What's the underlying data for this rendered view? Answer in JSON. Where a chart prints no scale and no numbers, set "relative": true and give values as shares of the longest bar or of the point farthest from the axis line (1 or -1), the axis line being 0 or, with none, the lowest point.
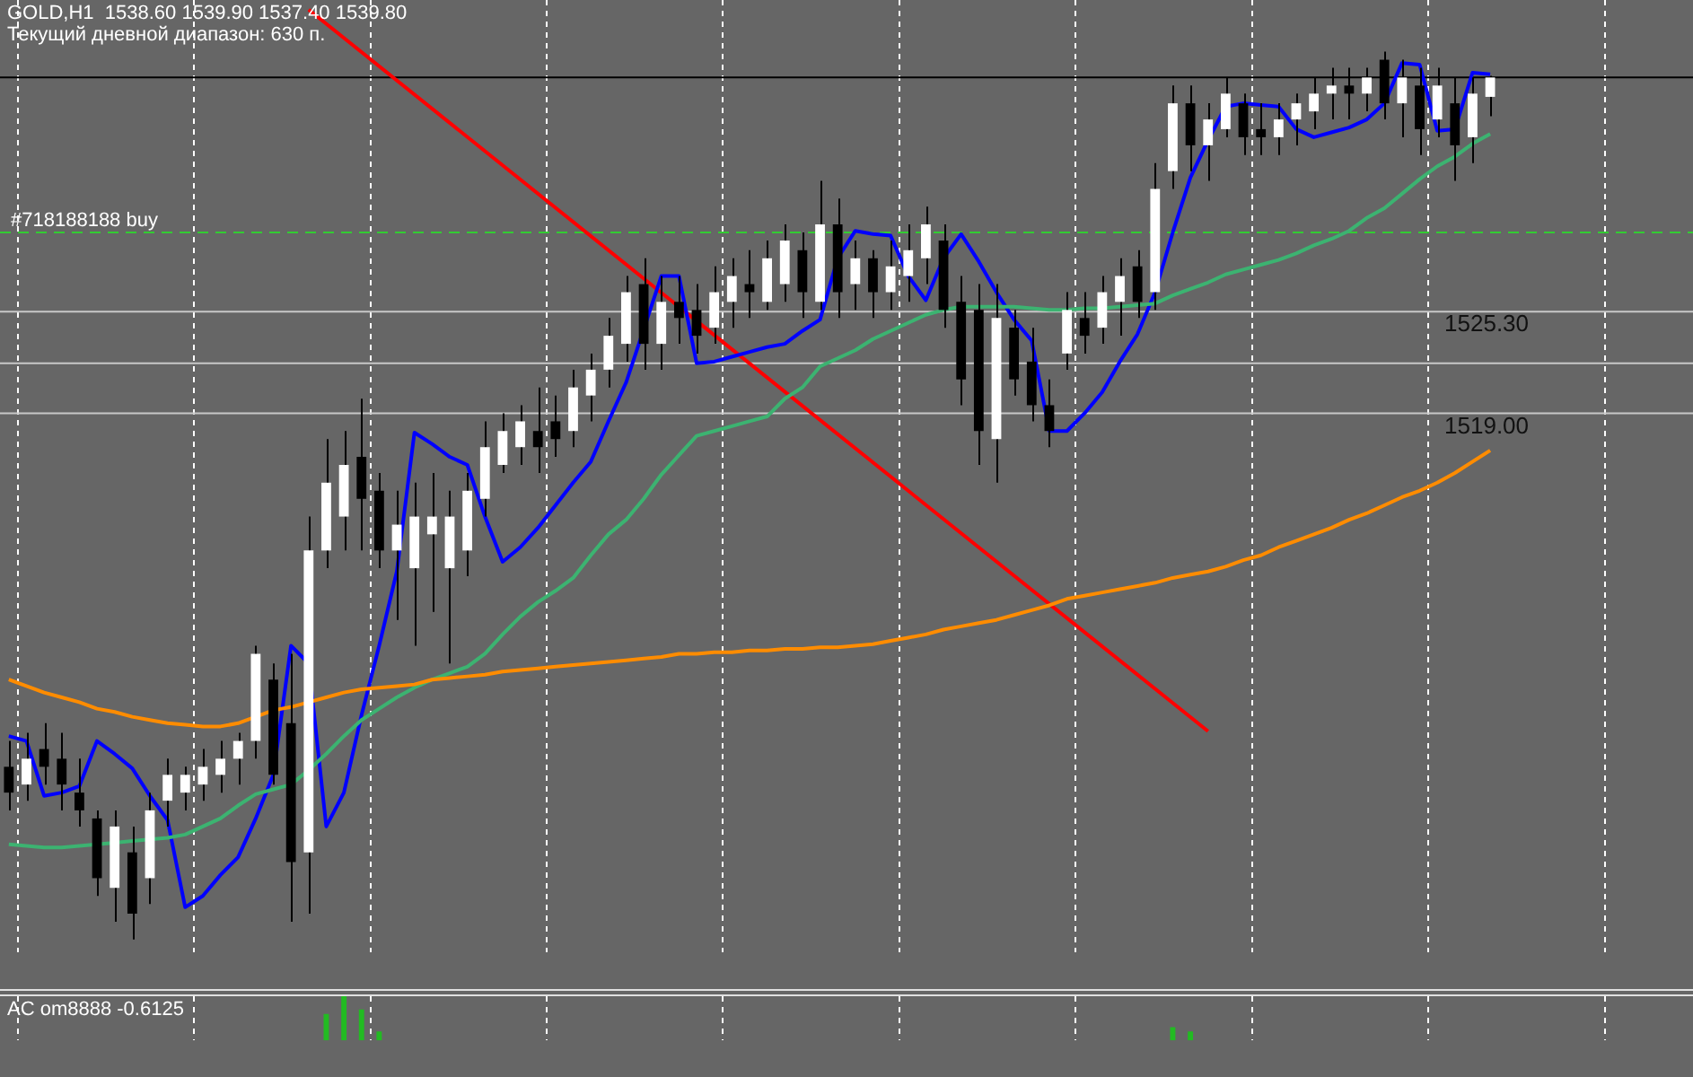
{
  "chart_data": [
    {
      "type": "candlestick",
      "title": "GOLD,H1  1538.60 1539.90 1537.40 1539.80",
      "subtitle": "Текущий дневной диапазон: 630 п.",
      "categories": [
        null,
        null,
        null,
        null,
        null,
        null,
        null,
        null,
        null,
        null,
        null,
        null,
        null,
        null,
        null,
        null,
        null,
        null,
        null,
        null,
        null,
        null,
        null,
        null,
        null,
        null,
        null,
        null,
        null,
        null,
        null,
        null,
        null,
        null,
        null,
        null,
        null,
        null,
        null,
        null,
        null,
        null,
        null,
        null,
        null,
        null,
        null,
        null,
        null,
        null,
        null,
        null,
        null,
        null,
        null,
        null,
        null,
        null,
        null,
        null,
        null,
        null,
        null,
        null,
        null,
        null,
        null,
        null,
        null,
        null,
        null,
        null,
        null,
        null,
        null,
        null,
        null,
        null,
        null,
        null,
        null,
        null,
        null,
        null,
        null,
        null,
        null,
        null,
        null,
        null,
        null,
        null,
        null,
        null,
        null,
        null
      ],
      "ohlc": [
        [
          1497.1,
          1498.7,
          1494.4,
          1495.5
        ],
        [
          1496.0,
          1499.2,
          1495.0,
          1497.6
        ],
        [
          1498.2,
          1499.8,
          1496.0,
          1497.1
        ],
        [
          1497.6,
          1499.2,
          1494.4,
          1496.0
        ],
        [
          1495.5,
          1497.6,
          1493.4,
          1494.4
        ],
        [
          1493.9,
          1494.4,
          1489.1,
          1490.2
        ],
        [
          1489.6,
          1494.4,
          1487.5,
          1493.4
        ],
        [
          1491.8,
          1493.4,
          1486.4,
          1488.0
        ],
        [
          1490.2,
          1495.5,
          1488.6,
          1494.4
        ],
        [
          1495.0,
          1497.6,
          1493.4,
          1496.6
        ],
        [
          1495.5,
          1497.1,
          1494.4,
          1496.6
        ],
        [
          1496.0,
          1498.2,
          1495.0,
          1497.1
        ],
        [
          1496.6,
          1498.7,
          1495.5,
          1497.6
        ],
        [
          1497.6,
          1499.2,
          1496.0,
          1498.7
        ],
        [
          1498.7,
          1504.6,
          1497.6,
          1504.1
        ],
        [
          1502.5,
          1503.5,
          1496.0,
          1496.6
        ],
        [
          1499.8,
          1504.1,
          1487.5,
          1491.2
        ],
        [
          1491.8,
          1512.6,
          1488.0,
          1510.5
        ],
        [
          1510.5,
          1517.4,
          1509.4,
          1514.7
        ],
        [
          1512.6,
          1517.9,
          1510.5,
          1515.8
        ],
        [
          1516.3,
          1519.9,
          1510.5,
          1513.7
        ],
        [
          1514.2,
          1515.3,
          1509.4,
          1510.5
        ],
        [
          1510.5,
          1514.2,
          1506.2,
          1512.1
        ],
        [
          1509.4,
          1514.7,
          1504.6,
          1512.6
        ],
        [
          1511.5,
          1515.3,
          1506.7,
          1512.6
        ],
        [
          1509.4,
          1514.2,
          1503.5,
          1512.6
        ],
        [
          1510.5,
          1515.3,
          1508.9,
          1514.2
        ],
        [
          1513.7,
          1518.5,
          1512.6,
          1516.9
        ],
        [
          1515.8,
          1519.0,
          1515.3,
          1517.9
        ],
        [
          1516.9,
          1519.5,
          1515.8,
          1518.5
        ],
        [
          1517.9,
          1520.6,
          1515.3,
          1516.9
        ],
        [
          1518.5,
          1520.1,
          1516.3,
          1517.4
        ],
        [
          1517.9,
          1521.7,
          1516.9,
          1520.6
        ],
        [
          1520.1,
          1522.7,
          1518.5,
          1521.7
        ],
        [
          1521.7,
          1524.9,
          1520.6,
          1523.8
        ],
        [
          1523.3,
          1527.5,
          1522.2,
          1526.5
        ],
        [
          1527.0,
          1528.6,
          1521.7,
          1523.3
        ],
        [
          1523.3,
          1527.5,
          1521.7,
          1525.9
        ],
        [
          1525.9,
          1527.5,
          1523.3,
          1524.9
        ],
        [
          1525.4,
          1527.0,
          1522.7,
          1523.8
        ],
        [
          1524.3,
          1528.1,
          1523.3,
          1526.5
        ],
        [
          1525.9,
          1528.6,
          1524.3,
          1527.5
        ],
        [
          1527.0,
          1529.1,
          1524.9,
          1526.5
        ],
        [
          1525.9,
          1529.7,
          1525.4,
          1528.6
        ],
        [
          1527.0,
          1530.7,
          1525.9,
          1529.7
        ],
        [
          1529.1,
          1530.2,
          1524.9,
          1526.5
        ],
        [
          1525.9,
          1533.4,
          1525.4,
          1530.7
        ],
        [
          1530.7,
          1532.3,
          1524.9,
          1526.5
        ],
        [
          1527.0,
          1529.7,
          1525.4,
          1528.6
        ],
        [
          1528.6,
          1529.1,
          1524.9,
          1526.5
        ],
        [
          1526.5,
          1529.7,
          1525.4,
          1528.1
        ],
        [
          1527.5,
          1530.7,
          1525.9,
          1529.1
        ],
        [
          1528.6,
          1531.8,
          1527.0,
          1530.7
        ],
        [
          1529.7,
          1530.7,
          1524.3,
          1525.4
        ],
        [
          1525.9,
          1527.5,
          1519.5,
          1521.1
        ],
        [
          1525.4,
          1527.0,
          1515.8,
          1517.9
        ],
        [
          1517.4,
          1527.0,
          1514.7,
          1524.9
        ],
        [
          1524.3,
          1525.4,
          1520.1,
          1521.1
        ],
        [
          1522.2,
          1524.3,
          1518.5,
          1519.5
        ],
        [
          1519.5,
          1521.1,
          1516.9,
          1517.9
        ],
        [
          1522.7,
          1526.5,
          1521.7,
          1525.4
        ],
        [
          1524.9,
          1526.5,
          1522.7,
          1523.8
        ],
        [
          1524.3,
          1527.5,
          1523.3,
          1526.5
        ],
        [
          1525.9,
          1528.6,
          1523.8,
          1527.5
        ],
        [
          1528.1,
          1529.1,
          1524.9,
          1525.9
        ],
        [
          1526.5,
          1534.5,
          1525.4,
          1532.9
        ],
        [
          1534.0,
          1539.3,
          1532.9,
          1538.2
        ],
        [
          1538.2,
          1539.3,
          1534.0,
          1535.6
        ],
        [
          1535.6,
          1538.2,
          1533.4,
          1537.2
        ],
        [
          1536.6,
          1539.8,
          1536.1,
          1538.8
        ],
        [
          1538.2,
          1538.8,
          1535.0,
          1536.1
        ],
        [
          1536.6,
          1538.2,
          1535.0,
          1536.1
        ],
        [
          1536.1,
          1538.2,
          1535.0,
          1537.2
        ],
        [
          1537.2,
          1538.8,
          1535.6,
          1538.2
        ],
        [
          1537.7,
          1539.8,
          1536.6,
          1538.8
        ],
        [
          1538.8,
          1540.4,
          1537.2,
          1539.3
        ],
        [
          1539.3,
          1540.4,
          1537.2,
          1538.8
        ],
        [
          1538.8,
          1540.4,
          1537.7,
          1539.8
        ],
        [
          1540.9,
          1541.4,
          1537.2,
          1538.2
        ],
        [
          1538.2,
          1540.9,
          1536.1,
          1539.8
        ],
        [
          1539.3,
          1540.4,
          1535.0,
          1536.6
        ],
        [
          1537.2,
          1540.4,
          1536.1,
          1539.3
        ],
        [
          1538.2,
          1539.8,
          1533.4,
          1535.6
        ],
        [
          1536.1,
          1539.8,
          1534.5,
          1538.8
        ],
        [
          1538.6,
          1539.9,
          1537.4,
          1539.8
        ],
        null,
        null,
        null,
        null,
        null,
        null,
        null,
        null,
        null,
        null,
        null
      ],
      "series": [
        {
          "type": "line",
          "color": "#ff8c00",
          "values": [
            1502.5,
            1502.1,
            1501.7,
            1501.4,
            1501.1,
            1500.7,
            1500.5,
            1500.2,
            1500.0,
            1499.8,
            1499.7,
            1499.6,
            1499.6,
            1499.8,
            1500.2,
            1500.6,
            1500.8,
            1501.1,
            1501.4,
            1501.7,
            1501.9,
            1502.0,
            1502.1,
            1502.2,
            1502.5,
            1502.6,
            1502.7,
            1502.8,
            1503.0,
            1503.1,
            1503.2,
            1503.3,
            1503.4,
            1503.5,
            1503.6,
            1503.7,
            1503.8,
            1503.9,
            1504.1,
            1504.1,
            1504.2,
            1504.2,
            1504.3,
            1504.3,
            1504.4,
            1504.4,
            1504.5,
            1504.5,
            1504.6,
            1504.7,
            1504.9,
            1505.1,
            1505.3,
            1505.6,
            1505.8,
            1506.0,
            1506.2,
            1506.5,
            1506.8,
            1507.1,
            1507.5,
            1507.7,
            1507.9,
            1508.1,
            1508.3,
            1508.5,
            1508.8,
            1509.0,
            1509.2,
            1509.5,
            1509.9,
            1510.2,
            1510.7,
            1511.1,
            1511.5,
            1511.9,
            1512.4,
            1512.8,
            1513.3,
            1513.8,
            1514.2,
            1514.7,
            1515.3,
            1516.0,
            1516.7,
            null,
            null,
            null,
            null,
            null,
            null,
            null,
            null,
            null,
            null,
            null
          ]
        },
        {
          "type": "line",
          "color": "#3cb371",
          "values": [
            1492.3,
            1492.2,
            1492.1,
            1492.1,
            1492.2,
            1492.3,
            1492.4,
            1492.5,
            1492.6,
            1492.7,
            1492.9,
            1493.4,
            1493.9,
            1494.7,
            1495.4,
            1495.7,
            1496.0,
            1496.9,
            1497.9,
            1499.0,
            1500.0,
            1500.7,
            1501.4,
            1502.0,
            1502.5,
            1502.9,
            1503.3,
            1504.1,
            1505.3,
            1506.4,
            1507.3,
            1508.0,
            1508.8,
            1510.2,
            1511.5,
            1512.4,
            1513.7,
            1515.2,
            1516.4,
            1517.6,
            1517.9,
            1518.2,
            1518.5,
            1518.8,
            1519.9,
            1520.6,
            1521.9,
            1522.4,
            1522.9,
            1523.6,
            1524.1,
            1524.6,
            1525.1,
            1525.4,
            1525.6,
            1525.6,
            1525.6,
            1525.6,
            1525.5,
            1525.4,
            1525.4,
            1525.5,
            1525.5,
            1525.6,
            1525.7,
            1525.8,
            1526.3,
            1526.7,
            1527.1,
            1527.6,
            1527.9,
            1528.2,
            1528.5,
            1528.9,
            1529.4,
            1529.8,
            1530.3,
            1531.1,
            1531.7,
            1532.6,
            1533.5,
            1534.3,
            1534.9,
            1535.7,
            1536.3,
            null,
            null,
            null,
            null,
            null,
            null,
            null,
            null,
            null,
            null,
            null
          ]
        },
        {
          "type": "line",
          "color": "#0000ff",
          "values": [
            1499.0,
            1498.7,
            1495.3,
            1495.5,
            1495.9,
            1498.7,
            1497.9,
            1497.0,
            1495.3,
            1493.8,
            1488.4,
            1489.1,
            1490.4,
            1491.5,
            1493.9,
            1496.6,
            1504.6,
            1503.5,
            1493.4,
            1495.5,
            1500.3,
            1504.6,
            1509.2,
            1517.8,
            1517.1,
            1516.3,
            1515.8,
            1512.6,
            1509.8,
            1510.7,
            1511.9,
            1513.3,
            1514.7,
            1516.0,
            1518.5,
            1520.9,
            null,
            1527.5,
            1527.5,
            1522.1,
            1522.2,
            1522.5,
            1522.8,
            1523.1,
            1523.3,
            1524.1,
            1524.8,
            1528.6,
            1530.3,
            1530.1,
            1530.0,
            1527.5,
            1526.0,
            1528.6,
            1530.1,
            1528.4,
            1526.5,
            1524.8,
            1523.5,
            1517.9,
            1517.9,
            1519.0,
            1520.3,
            1522.2,
            1523.9,
            1526.5,
            1530.2,
            1533.6,
            1535.9,
            1538.0,
            1538.2,
            1538.1,
            1538.0,
            1536.6,
            1536.1,
            1536.4,
            1536.7,
            1537.2,
            1538.2,
            1540.7,
            1540.6,
            1536.5,
            1536.6,
            1540.1,
            1540.0,
            null,
            null,
            null,
            null,
            null,
            null,
            null,
            null,
            null,
            null,
            null
          ]
        },
        {
          "type": "line",
          "color": "#ff0000",
          "values": [
            null,
            null,
            null,
            null,
            null,
            null,
            null,
            null,
            null,
            null,
            null,
            null,
            null,
            null,
            null,
            null,
            null,
            1544.0,
            null,
            null,
            null,
            null,
            null,
            null,
            null,
            null,
            null,
            null,
            null,
            null,
            null,
            null,
            null,
            null,
            null,
            null,
            null,
            null,
            null,
            null,
            null,
            null,
            null,
            null,
            null,
            null,
            null,
            null,
            null,
            null,
            null,
            null,
            null,
            null,
            null,
            null,
            null,
            null,
            null,
            null,
            null,
            null,
            null,
            null,
            null,
            null,
            null,
            null,
            1499.3,
            null,
            null,
            null,
            null,
            null,
            null,
            null,
            null,
            null,
            null,
            null,
            null,
            null,
            null,
            null,
            null,
            null,
            null,
            null,
            null,
            null,
            null,
            null,
            null,
            null,
            null,
            null
          ]
        }
      ],
      "ylim": [
        1485.6,
        1544.6
      ],
      "ref_lines": [
        {
          "axis": "y",
          "value": 1539.8,
          "color": "#000000"
        },
        {
          "axis": "y",
          "value": 1530.2,
          "label": "#718188188 buy",
          "color": "#33cc33",
          "line_style": "dashed"
        },
        {
          "axis": "y",
          "value": 1525.3,
          "label": "1525.30",
          "color": "#c8c8c8"
        },
        {
          "axis": "y",
          "value": 1522.1,
          "color": "#c8c8c8"
        },
        {
          "axis": "y",
          "value": 1519.0,
          "label": "1519.00",
          "color": "#c8c8c8"
        }
      ],
      "grid": "x"
    },
    {
      "type": "bar",
      "title": "AC om8888 -0.6125",
      "relative": true,
      "color": "#22bb22",
      "categories": [
        null,
        null,
        null,
        null,
        null,
        null,
        null,
        null,
        null,
        null,
        null,
        null,
        null,
        null,
        null,
        null,
        null,
        null,
        null,
        null,
        null,
        null,
        null,
        null,
        null,
        null,
        null,
        null,
        null,
        null,
        null,
        null,
        null,
        null,
        null,
        null,
        null,
        null,
        null,
        null,
        null,
        null,
        null,
        null,
        null,
        null,
        null,
        null,
        null,
        null,
        null,
        null,
        null,
        null,
        null,
        null,
        null,
        null,
        null,
        null,
        null,
        null,
        null,
        null,
        null,
        null,
        null,
        null,
        null,
        null,
        null,
        null,
        null,
        null,
        null,
        null,
        null,
        null,
        null,
        null,
        null,
        null,
        null,
        null,
        null,
        null,
        null,
        null,
        null,
        null,
        null,
        null,
        null,
        null,
        null,
        null
      ],
      "values": [
        null,
        null,
        null,
        null,
        null,
        null,
        null,
        null,
        null,
        null,
        null,
        null,
        null,
        null,
        null,
        null,
        null,
        null,
        0.6,
        1,
        0.7,
        0.2,
        null,
        null,
        null,
        null,
        null,
        null,
        null,
        null,
        null,
        null,
        null,
        null,
        null,
        null,
        null,
        null,
        null,
        null,
        null,
        null,
        null,
        null,
        null,
        null,
        null,
        null,
        null,
        null,
        null,
        null,
        null,
        null,
        null,
        null,
        null,
        null,
        null,
        null,
        null,
        null,
        null,
        null,
        null,
        null,
        0.3,
        0.2,
        null,
        null,
        null,
        null,
        null,
        null,
        null,
        null,
        null,
        null,
        null,
        null,
        null,
        null,
        null,
        null,
        null,
        null,
        null,
        null,
        null,
        null,
        null,
        null,
        null,
        null,
        null,
        null
      ],
      "grid": "x"
    }
  ]
}
